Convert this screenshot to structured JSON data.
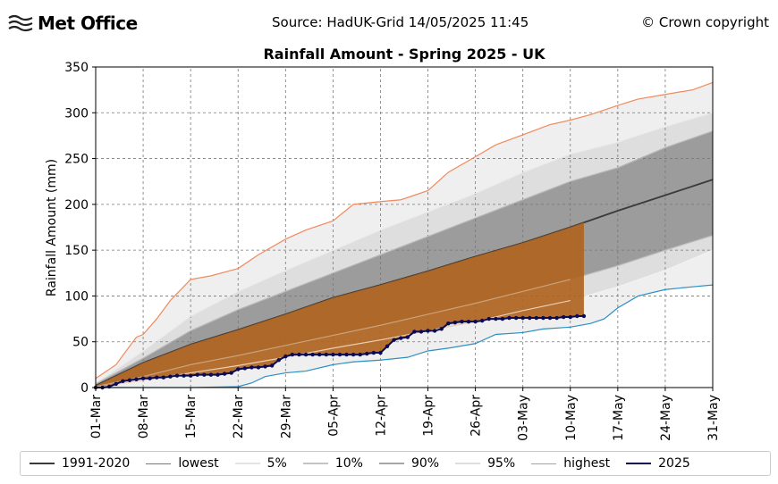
{
  "header": {
    "logo_text": "Met Office",
    "source": "Source: HadUK-Grid 14/05/2025 11:45",
    "copyright": "© Crown copyright"
  },
  "legend": [
    {
      "label": "1991-2020",
      "color": "#3a3a3a"
    },
    {
      "label": "lowest",
      "color": "#2c8fc4"
    },
    {
      "label": "5%",
      "color": "#e6e6e6"
    },
    {
      "label": "10%",
      "color": "#c8c8c8"
    },
    {
      "label": "90%",
      "color": "#aaaaaa"
    },
    {
      "label": "95%",
      "color": "#dcdcdc"
    },
    {
      "label": "highest",
      "color": "#f08a5d"
    },
    {
      "label": "2025",
      "color": "#0b0b55"
    }
  ],
  "chart_data": {
    "type": "line",
    "title": "Rainfall Amount - Spring 2025 - UK",
    "ylabel": "Rainfall Amount (mm)",
    "xlabel": "",
    "ylim": [
      0,
      350
    ],
    "yticks": [
      0,
      50,
      100,
      150,
      200,
      250,
      300,
      350
    ],
    "xticks": [
      "01-Mar",
      "08-Mar",
      "15-Mar",
      "22-Mar",
      "29-Mar",
      "05-Apr",
      "12-Apr",
      "19-Apr",
      "26-Apr",
      "03-May",
      "10-May",
      "17-May",
      "24-May",
      "31-May"
    ],
    "xtick_days": [
      0,
      7,
      14,
      21,
      28,
      35,
      42,
      49,
      56,
      63,
      70,
      77,
      84,
      91
    ],
    "x_range_days": [
      0,
      91
    ],
    "grid": true,
    "legend_position": "bottom",
    "series": [
      {
        "name": "highest",
        "days": [
          0,
          3,
          6,
          7,
          9,
          11,
          14,
          17,
          21,
          24,
          28,
          31,
          35,
          38,
          42,
          45,
          49,
          52,
          56,
          59,
          63,
          67,
          70,
          73,
          77,
          80,
          84,
          88,
          91
        ],
        "values": [
          10,
          25,
          55,
          58,
          75,
          95,
          118,
          122,
          130,
          145,
          162,
          172,
          182,
          200,
          203,
          205,
          215,
          235,
          252,
          265,
          276,
          287,
          292,
          298,
          308,
          315,
          320,
          325,
          333
        ]
      },
      {
        "name": "95%",
        "days": [
          0,
          7,
          14,
          21,
          28,
          35,
          42,
          49,
          56,
          63,
          70,
          77,
          84,
          91
        ],
        "values": [
          5,
          40,
          78,
          105,
          128,
          150,
          172,
          192,
          212,
          235,
          255,
          268,
          285,
          300
        ]
      },
      {
        "name": "90%",
        "days": [
          0,
          7,
          14,
          21,
          28,
          35,
          42,
          49,
          56,
          63,
          70,
          77,
          84,
          91
        ],
        "values": [
          4,
          32,
          62,
          85,
          105,
          125,
          145,
          165,
          185,
          205,
          225,
          240,
          262,
          280
        ]
      },
      {
        "name": "1991-2020",
        "days": [
          0,
          7,
          14,
          21,
          28,
          35,
          42,
          49,
          56,
          63,
          70,
          77,
          84,
          91
        ],
        "values": [
          2,
          27,
          47,
          63,
          80,
          98,
          112,
          127,
          143,
          158,
          175,
          193,
          210,
          227
        ]
      },
      {
        "name": "10%",
        "days": [
          0,
          7,
          14,
          21,
          28,
          35,
          42,
          49,
          56,
          63,
          70,
          77,
          84,
          91
        ],
        "values": [
          1,
          12,
          25,
          35,
          46,
          57,
          68,
          80,
          92,
          105,
          118,
          133,
          150,
          166
        ]
      },
      {
        "name": "5%",
        "days": [
          0,
          7,
          14,
          21,
          28,
          35,
          42,
          49,
          56,
          63,
          70,
          77,
          84,
          91
        ],
        "values": [
          0,
          8,
          16,
          24,
          33,
          43,
          52,
          62,
          72,
          84,
          95,
          110,
          128,
          150
        ]
      },
      {
        "name": "lowest",
        "days": [
          0,
          14,
          21,
          23,
          25,
          28,
          31,
          35,
          38,
          42,
          46,
          49,
          52,
          56,
          59,
          63,
          66,
          70,
          73,
          75,
          77,
          80,
          84,
          88,
          91
        ],
        "values": [
          0,
          0,
          1,
          5,
          12,
          16,
          18,
          25,
          28,
          30,
          33,
          40,
          43,
          48,
          58,
          60,
          64,
          66,
          70,
          75,
          87,
          100,
          107,
          110,
          112
        ]
      }
    ],
    "actual_2025": {
      "name": "2025",
      "days": [
        0,
        1,
        2,
        3,
        4,
        5,
        6,
        7,
        8,
        9,
        10,
        11,
        12,
        13,
        14,
        15,
        16,
        17,
        18,
        19,
        20,
        21,
        22,
        23,
        24,
        25,
        26,
        27,
        28,
        29,
        30,
        31,
        32,
        33,
        34,
        35,
        36,
        37,
        38,
        39,
        40,
        41,
        42,
        43,
        44,
        45,
        46,
        47,
        48,
        49,
        50,
        51,
        52,
        53,
        54,
        55,
        56,
        57,
        58,
        59,
        60,
        61,
        62,
        63,
        64,
        65,
        66,
        67,
        68,
        69,
        70,
        71,
        72
      ],
      "values": [
        0,
        0,
        1,
        4,
        7,
        8,
        9,
        10,
        10,
        11,
        11,
        12,
        13,
        13,
        13,
        14,
        14,
        14,
        14,
        15,
        16,
        20,
        21,
        22,
        22,
        23,
        24,
        30,
        34,
        36,
        36,
        36,
        36,
        36,
        36,
        36,
        36,
        36,
        36,
        36,
        37,
        38,
        38,
        45,
        52,
        54,
        55,
        61,
        61,
        62,
        62,
        64,
        70,
        71,
        72,
        72,
        72,
        73,
        75,
        75,
        75,
        76,
        76,
        76,
        76,
        76,
        76,
        76,
        76,
        77,
        77,
        78,
        78
      ]
    },
    "shading": {
      "between": [
        "2025",
        "1991-2020"
      ],
      "color": "#b06420"
    }
  }
}
